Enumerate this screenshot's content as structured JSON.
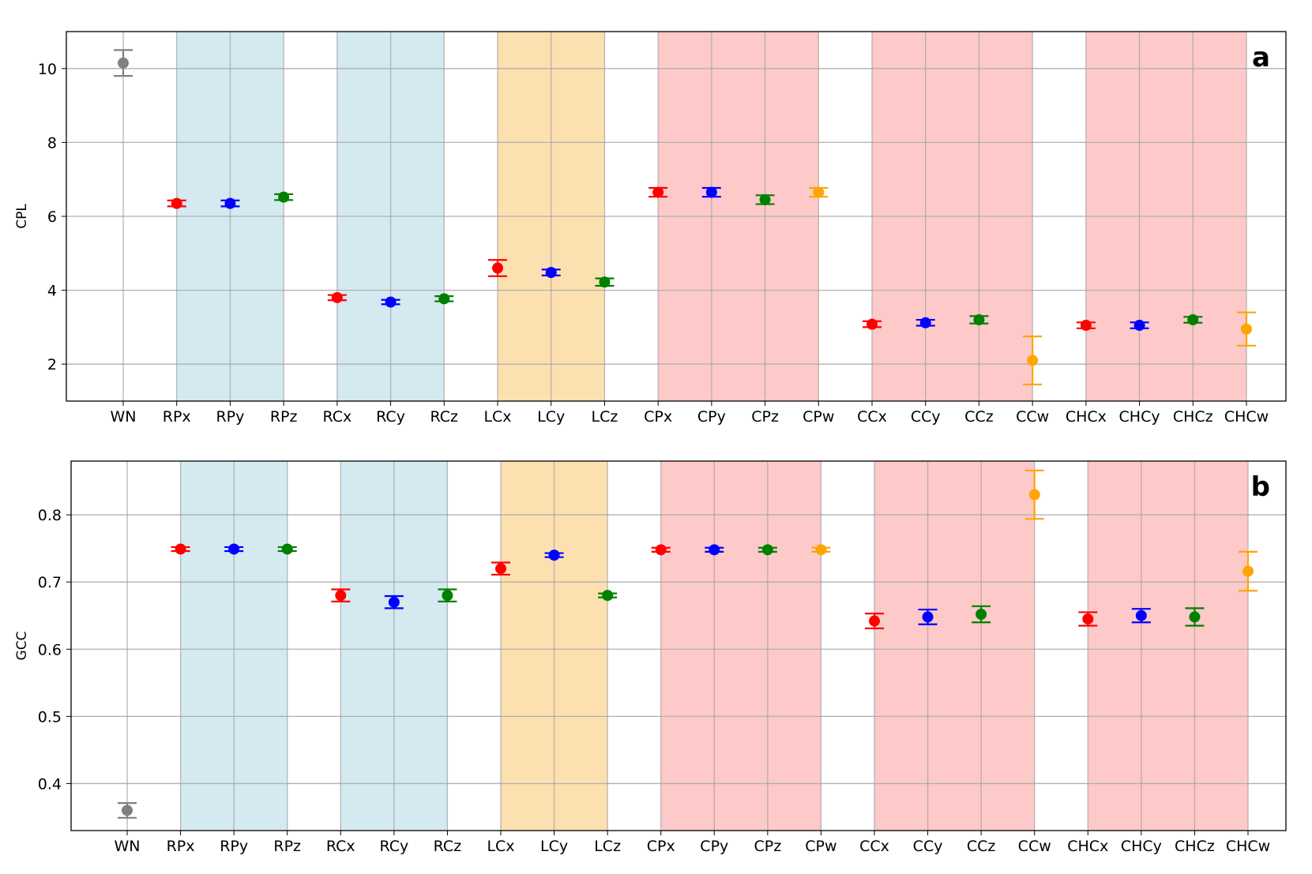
{
  "chart_data": [
    {
      "type": "scatter",
      "panel_label": "a",
      "title": "",
      "xlabel": "",
      "ylabel": "CPL",
      "categories": [
        "WN",
        "RPx",
        "RPy",
        "RPz",
        "RCx",
        "RCy",
        "RCz",
        "LCx",
        "LCy",
        "LCz",
        "CPx",
        "CPy",
        "CPz",
        "CPw",
        "CCx",
        "CCy",
        "CCz",
        "CCw",
        "CHCx",
        "CHCy",
        "CHCz",
        "CHCw"
      ],
      "values": [
        10.15,
        6.35,
        6.35,
        6.52,
        3.8,
        3.68,
        3.77,
        4.6,
        4.48,
        4.22,
        6.65,
        6.65,
        6.45,
        6.65,
        3.08,
        3.12,
        3.2,
        2.1,
        3.05,
        3.05,
        3.2,
        2.95
      ],
      "errors": [
        0.35,
        0.08,
        0.08,
        0.08,
        0.07,
        0.06,
        0.07,
        0.22,
        0.08,
        0.1,
        0.12,
        0.12,
        0.12,
        0.12,
        0.08,
        0.08,
        0.1,
        0.65,
        0.08,
        0.08,
        0.08,
        0.45
      ],
      "colors": [
        "#808080",
        "#ff0000",
        "#0000ff",
        "#008000",
        "#ff0000",
        "#0000ff",
        "#008000",
        "#ff0000",
        "#0000ff",
        "#008000",
        "#ff0000",
        "#0000ff",
        "#008000",
        "#ffa500",
        "#ff0000",
        "#0000ff",
        "#008000",
        "#ffa500",
        "#ff0000",
        "#0000ff",
        "#008000",
        "#ffa500"
      ],
      "ylim": [
        1,
        11
      ],
      "yticks": [
        2,
        4,
        6,
        8,
        10
      ],
      "grid": true,
      "bands": [
        {
          "from": "RPx",
          "to": "RPz",
          "color": "#d4e9f0"
        },
        {
          "from": "RCx",
          "to": "RCz",
          "color": "#d4e9f0"
        },
        {
          "from": "LCx",
          "to": "LCz",
          "color": "#fde0b0"
        },
        {
          "from": "CPx",
          "to": "CPw",
          "color": "#fec9c9"
        },
        {
          "from": "CCx",
          "to": "CCw",
          "color": "#fec9c9"
        },
        {
          "from": "CHCx",
          "to": "CHCw",
          "color": "#fec9c9"
        }
      ]
    },
    {
      "type": "scatter",
      "panel_label": "b",
      "title": "",
      "xlabel": "",
      "ylabel": "GCC",
      "categories": [
        "WN",
        "RPx",
        "RPy",
        "RPz",
        "RCx",
        "RCy",
        "RCz",
        "LCx",
        "LCy",
        "LCz",
        "CPx",
        "CPy",
        "CPz",
        "CPw",
        "CCx",
        "CCy",
        "CCz",
        "CCw",
        "CHCx",
        "CHCy",
        "CHCz",
        "CHCw"
      ],
      "values": [
        0.36,
        0.749,
        0.749,
        0.749,
        0.68,
        0.67,
        0.68,
        0.72,
        0.74,
        0.68,
        0.748,
        0.748,
        0.748,
        0.748,
        0.642,
        0.648,
        0.652,
        0.83,
        0.645,
        0.65,
        0.648,
        0.716
      ],
      "errors": [
        0.011,
        0.003,
        0.003,
        0.003,
        0.009,
        0.009,
        0.009,
        0.009,
        0.003,
        0.003,
        0.003,
        0.003,
        0.003,
        0.003,
        0.011,
        0.011,
        0.012,
        0.036,
        0.01,
        0.01,
        0.013,
        0.029
      ],
      "colors": [
        "#808080",
        "#ff0000",
        "#0000ff",
        "#008000",
        "#ff0000",
        "#0000ff",
        "#008000",
        "#ff0000",
        "#0000ff",
        "#008000",
        "#ff0000",
        "#0000ff",
        "#008000",
        "#ffa500",
        "#ff0000",
        "#0000ff",
        "#008000",
        "#ffa500",
        "#ff0000",
        "#0000ff",
        "#008000",
        "#ffa500"
      ],
      "ylim": [
        0.33,
        0.88
      ],
      "yticks": [
        0.4,
        0.5,
        0.6,
        0.7,
        0.8
      ],
      "grid": true,
      "bands": [
        {
          "from": "RPx",
          "to": "RPz",
          "color": "#d4e9f0"
        },
        {
          "from": "RCx",
          "to": "RCz",
          "color": "#d4e9f0"
        },
        {
          "from": "LCx",
          "to": "LCz",
          "color": "#fde0b0"
        },
        {
          "from": "CPx",
          "to": "CPw",
          "color": "#fec9c9"
        },
        {
          "from": "CCx",
          "to": "CCw",
          "color": "#fec9c9"
        },
        {
          "from": "CHCx",
          "to": "CHCw",
          "color": "#fec9c9"
        }
      ]
    }
  ]
}
